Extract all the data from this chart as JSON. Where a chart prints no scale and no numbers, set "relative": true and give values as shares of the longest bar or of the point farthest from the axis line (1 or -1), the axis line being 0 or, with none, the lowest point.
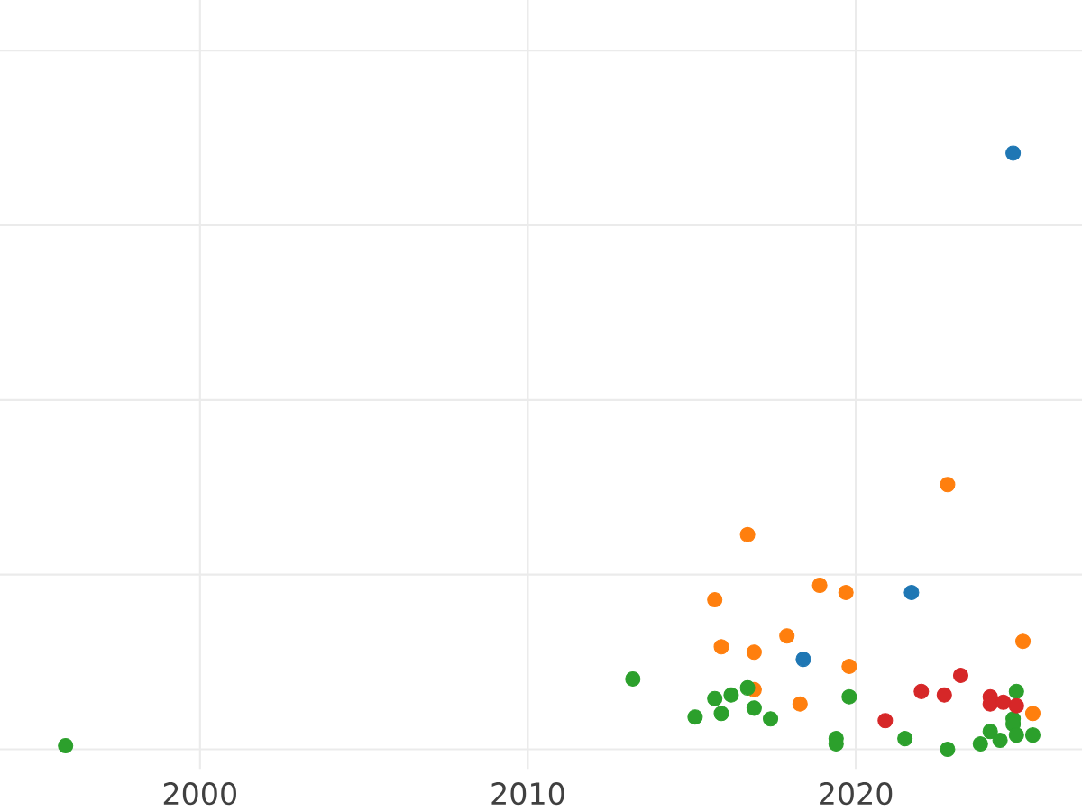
{
  "chart_data": {
    "type": "scatter",
    "relative": true,
    "grid": true,
    "marker": "circle",
    "xlim": [
      1993.9,
      2026.9
    ],
    "xticks": [
      2000,
      2010,
      2020
    ],
    "series": [
      {
        "color": "#1f77b4",
        "x": [
          2021.7,
          2018.4,
          2024.8
        ],
        "values": [
          0.263,
          0.151,
          1
        ]
      },
      {
        "color": "#ff7f0e",
        "x": [
          2022.8,
          2016.7,
          2018.9,
          2019.7,
          2015.7,
          2025.1,
          2017.9,
          2015.9,
          2016.9,
          2019.8,
          2016.9,
          2018.3,
          2025.4
        ],
        "values": [
          0.444,
          0.36,
          0.275,
          0.263,
          0.251,
          0.181,
          0.19,
          0.172,
          0.163,
          0.139,
          0.1,
          0.076,
          0.06
        ]
      },
      {
        "color": "#2ca02c",
        "x": [
          2013.2,
          2015.7,
          2016.2,
          2016.7,
          2015.1,
          2015.9,
          2016.9,
          2017.4,
          2019.8,
          2019.4,
          2019.4,
          2021.5,
          2022.8,
          2023.8,
          2024.1,
          2024.4,
          2024.9,
          2024.8,
          2024.8,
          2024.9,
          2025.4,
          1995.9
        ],
        "values": [
          0.118,
          0.085,
          0.091,
          0.103,
          0.054,
          0.06,
          0.069,
          0.051,
          0.088,
          0.018,
          0.009,
          0.018,
          0,
          0.009,
          0.03,
          0.015,
          0.097,
          0.051,
          0.042,
          0.024,
          0.024,
          0.006
        ]
      },
      {
        "color": "#d62728",
        "x": [
          2023.2,
          2022.0,
          2022.7,
          2024.1,
          2024.1,
          2024.5,
          2024.9,
          2020.9
        ],
        "values": [
          0.124,
          0.097,
          0.091,
          0.088,
          0.076,
          0.079,
          0.073,
          0.048
        ]
      }
    ]
  }
}
